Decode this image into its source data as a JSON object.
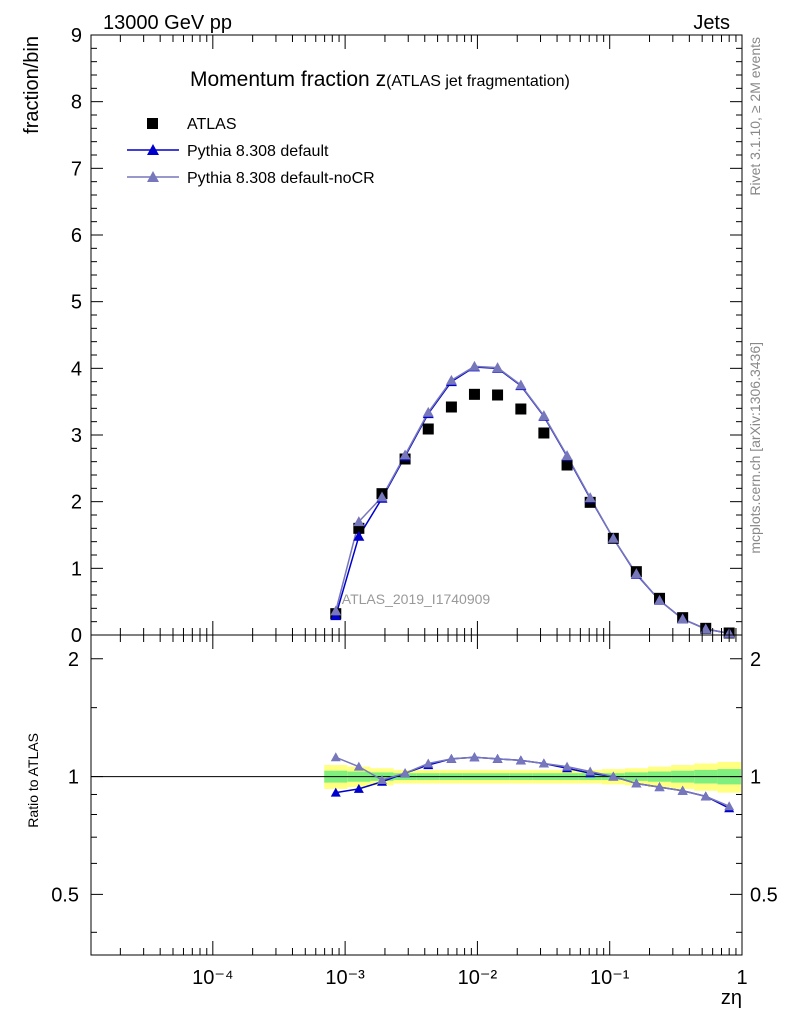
{
  "header": {
    "energy_label": "13000 GeV pp",
    "process_label": "Jets",
    "side_label_top": "Rivet 3.1.10, ≥ 2M events",
    "side_label_bottom": "mcplots.cern.ch [arXiv:1306.3436]"
  },
  "chart_data": {
    "type": "line",
    "title_main": "Momentum fraction z",
    "title_sub": "(ATLAS jet fragmentation)",
    "watermark": "ATLAS_2019_I1740909",
    "xlabel": "zη",
    "ylabel_top": "fraction/bin",
    "ylabel_bottom": "Ratio to ATLAS",
    "xscale": "log",
    "xlim": [
      1.2e-05,
      1
    ],
    "ylim_top": [
      0,
      9
    ],
    "ylim_bottom": [
      0.35,
      2.3
    ],
    "legend_position": "top-left",
    "x_tick_labels": [
      "10⁻⁴",
      "10⁻³",
      "10⁻²",
      "10⁻¹",
      "1"
    ],
    "y_tick_labels_top": [
      "0",
      "1",
      "2",
      "3",
      "4",
      "5",
      "6",
      "7",
      "8",
      "9"
    ],
    "y_tick_labels_bottom": [
      "0.5",
      "1",
      "2"
    ],
    "x": [
      0.00085,
      0.00127,
      0.0019,
      0.00284,
      0.00425,
      0.00636,
      0.0095,
      0.0142,
      0.0213,
      0.0318,
      0.0476,
      0.0712,
      0.1065,
      0.159,
      0.238,
      0.356,
      0.532,
      0.8
    ],
    "series": [
      {
        "name": "ATLAS",
        "color": "#000000",
        "marker": "square",
        "values": [
          0.32,
          1.6,
          2.12,
          2.64,
          3.09,
          3.42,
          3.61,
          3.6,
          3.39,
          3.03,
          2.55,
          1.99,
          1.45,
          0.95,
          0.55,
          0.26,
          0.1,
          0.03
        ]
      },
      {
        "name": "Pythia 8.308 default",
        "color": "#0000cc",
        "marker": "triangle",
        "values": [
          0.29,
          1.48,
          2.05,
          2.68,
          3.32,
          3.8,
          4.02,
          4.0,
          3.74,
          3.28,
          2.68,
          2.05,
          1.45,
          0.91,
          0.52,
          0.24,
          0.09,
          0.025
        ]
      },
      {
        "name": "Pythia 8.308 default-noCR",
        "color": "#7777bb",
        "marker": "triangle",
        "values": [
          0.36,
          1.7,
          2.07,
          2.7,
          3.34,
          3.82,
          4.03,
          4.01,
          3.75,
          3.29,
          2.69,
          2.06,
          1.45,
          0.92,
          0.52,
          0.24,
          0.09,
          0.025
        ]
      }
    ],
    "ratio": {
      "reference": 1,
      "series": [
        {
          "name": "Pythia 8.308 default",
          "color": "#0000cc",
          "values": [
            0.91,
            0.93,
            0.97,
            1.02,
            1.07,
            1.11,
            1.12,
            1.11,
            1.1,
            1.08,
            1.05,
            1.02,
            1.0,
            0.96,
            0.94,
            0.92,
            0.89,
            0.83
          ]
        },
        {
          "name": "Pythia 8.308 default-noCR",
          "color": "#7777bb",
          "values": [
            1.12,
            1.06,
            0.98,
            1.02,
            1.08,
            1.11,
            1.12,
            1.11,
            1.1,
            1.08,
            1.06,
            1.03,
            1.0,
            0.96,
            0.94,
            0.92,
            0.89,
            0.84
          ]
        }
      ],
      "band_inner": [
        0.035,
        0.03,
        0.025,
        0.02,
        0.02,
        0.02,
        0.02,
        0.02,
        0.02,
        0.02,
        0.02,
        0.02,
        0.02,
        0.025,
        0.03,
        0.035,
        0.04,
        0.045
      ],
      "band_outer": [
        0.07,
        0.06,
        0.05,
        0.04,
        0.04,
        0.04,
        0.04,
        0.04,
        0.04,
        0.04,
        0.04,
        0.04,
        0.045,
        0.05,
        0.06,
        0.07,
        0.08,
        0.09
      ],
      "band_inner_color": "#7ff07f",
      "band_outer_color": "#ffff80"
    }
  }
}
